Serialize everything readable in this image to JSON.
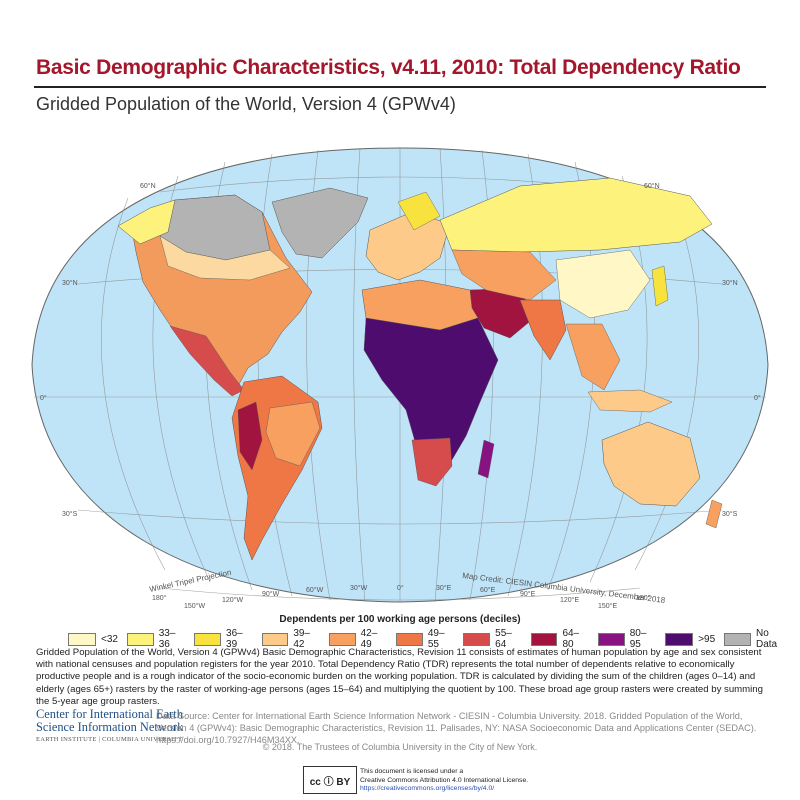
{
  "title": "Basic Demographic Characteristics, v4.11, 2010: Total Dependency Ratio",
  "subtitle": "Gridded Population of the World, Version 4 (GPWv4)",
  "map": {
    "projection_label": "Winkel Tripel Projection",
    "credit": "Map Credit: CIESIN Columbia University, December 2018",
    "ocean_color": "#bfe4f7",
    "graticule_color": "#8a8a8a",
    "lat_labels": [
      "60°N",
      "30°N",
      "0°",
      "30°S"
    ],
    "lon_labels": [
      "180°",
      "150°W",
      "120°W",
      "90°W",
      "60°W",
      "30°W",
      "0°",
      "30°E",
      "60°E",
      "90°E",
      "120°E",
      "150°E",
      "180°"
    ]
  },
  "legend": {
    "title": "Dependents per 100 working age persons (deciles)",
    "items": [
      {
        "label": "<32",
        "color": "#fff7c6"
      },
      {
        "label": "33–36",
        "color": "#fcf27c"
      },
      {
        "label": "36–39",
        "color": "#f8e33e"
      },
      {
        "label": "39–42",
        "color": "#fdca89"
      },
      {
        "label": "42–49",
        "color": "#f7a05f"
      },
      {
        "label": "49–55",
        "color": "#ef7746"
      },
      {
        "label": "55–64",
        "color": "#d64b4b"
      },
      {
        "label": "64–80",
        "color": "#a11440"
      },
      {
        "label": "80–95",
        "color": "#881282"
      },
      {
        "label": ">95",
        "color": "#4e0d6e"
      },
      {
        "label": "No Data",
        "color": "#b3b3b3"
      }
    ]
  },
  "description": "Gridded Population of the World, Version 4 (GPWv4) Basic Demographic Characteristics, Revision 11 consists of estimates of human population by age and sex consistent with national censuses and population registers for the year 2010. Total Dependency Ratio (TDR) represents the total number of dependents relative to economically productive people and is a rough indicator of the socio-economic burden on the working population. TDR is calculated by dividing the sum of the children (ages 0–14) and elderly (ages 65+) rasters by the raster of working-age persons (ages 15–64) and multiplying the quotient by 100. These broad age group rasters were created by summing the 5-year age group rasters.",
  "org": {
    "line1": "Center for International Earth",
    "line2": "Science Information Network",
    "line3": "EARTH INSTITUTE | COLUMBIA UNIVERSITY"
  },
  "source": "Data Source: Center for International Earth Science Information Network - CIESIN - Columbia University. 2018. Gridded Population of the World, Version 4 (GPWv4): Basic Demographic Characteristics, Revision 11. Palisades, NY: NASA Socioeconomic Data and Applications Center (SEDAC). https://doi.org/10.7927/H46M34XX.",
  "copyright": "© 2018. The Trustees of Columbia University in the City of New York.",
  "license": {
    "logo_text": "cc ⓘ BY",
    "line1": "This document is licensed under a",
    "line2": "Creative Commons Attribution 4.0 International License.",
    "url": "https://creativecommons.org/licenses/by/4.0/"
  }
}
